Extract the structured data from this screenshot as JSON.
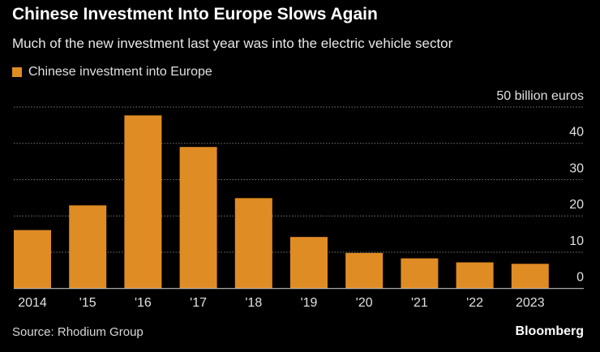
{
  "title": "Chinese Investment Into Europe Slows Again",
  "subtitle": "Much of the new investment last year was into the electric vehicle sector",
  "source": "Source: Rhodium Group",
  "logo": "Bloomberg",
  "colors": {
    "bar": "#e08c24",
    "background": "#000000",
    "grid": "#777777"
  },
  "chart_data": {
    "type": "bar",
    "categories": [
      "2014",
      "'15",
      "'16",
      "'17",
      "'18",
      "'19",
      "'20",
      "'21",
      "'22",
      "2023"
    ],
    "series": [
      {
        "name": "Chinese investment into Europe",
        "values": [
          16.1,
          22.9,
          47.7,
          39.0,
          24.9,
          14.2,
          9.8,
          8.3,
          7.2,
          6.8
        ]
      }
    ],
    "ylim": [
      0,
      50
    ],
    "yticks": [
      0,
      10,
      20,
      30,
      40,
      50
    ],
    "ytick_labels": [
      "0",
      "10",
      "20",
      "30",
      "40",
      "50 billion euros"
    ],
    "ylabel": "",
    "xlabel": "",
    "grid": true,
    "y_axis_position": "right",
    "legend": "top-left"
  }
}
